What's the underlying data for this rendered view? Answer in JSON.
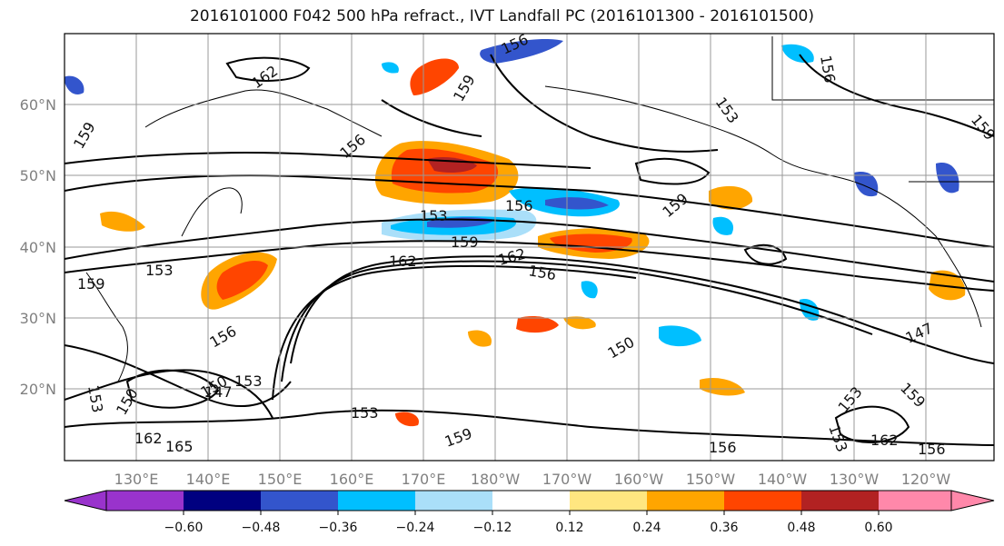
{
  "title": "2016101000 F042 500 hPa refract., IVT Landfall PC (2016101300 - 2016101500)",
  "chart_data": {
    "type": "heatmap",
    "title": "2016101000 F042 500 hPa refract., IVT Landfall PC (2016101300 - 2016101500)",
    "lon_labels": [
      "130°E",
      "140°E",
      "150°E",
      "160°E",
      "170°E",
      "180°W",
      "170°W",
      "160°W",
      "150°W",
      "140°W",
      "130°W",
      "120°W"
    ],
    "lat_labels": [
      "60°N",
      "50°N",
      "40°N",
      "30°N",
      "20°N"
    ],
    "grid": true,
    "colorbar": {
      "ticks": [
        "−0.60",
        "−0.48",
        "−0.36",
        "−0.24",
        "−0.12",
        "0.12",
        "0.24",
        "0.36",
        "0.48",
        "0.60"
      ],
      "colors": [
        "#9933cc",
        "#000080",
        "#3355cc",
        "#00bfff",
        "#aadff9",
        "#ffffff",
        "#ffe680",
        "#ffa500",
        "#ff4500",
        "#b22222",
        "#ff88aa"
      ],
      "extend": "both"
    },
    "contour_labels": [
      "162",
      "159",
      "156",
      "153",
      "153",
      "159",
      "162",
      "156",
      "162",
      "156",
      "159",
      "153",
      "156",
      "159",
      "150",
      "147",
      "153",
      "150",
      "162",
      "165",
      "159",
      "153",
      "153",
      "150",
      "156",
      "159",
      "153",
      "147",
      "153",
      "162",
      "156",
      "156",
      "159",
      "156",
      "159"
    ]
  }
}
